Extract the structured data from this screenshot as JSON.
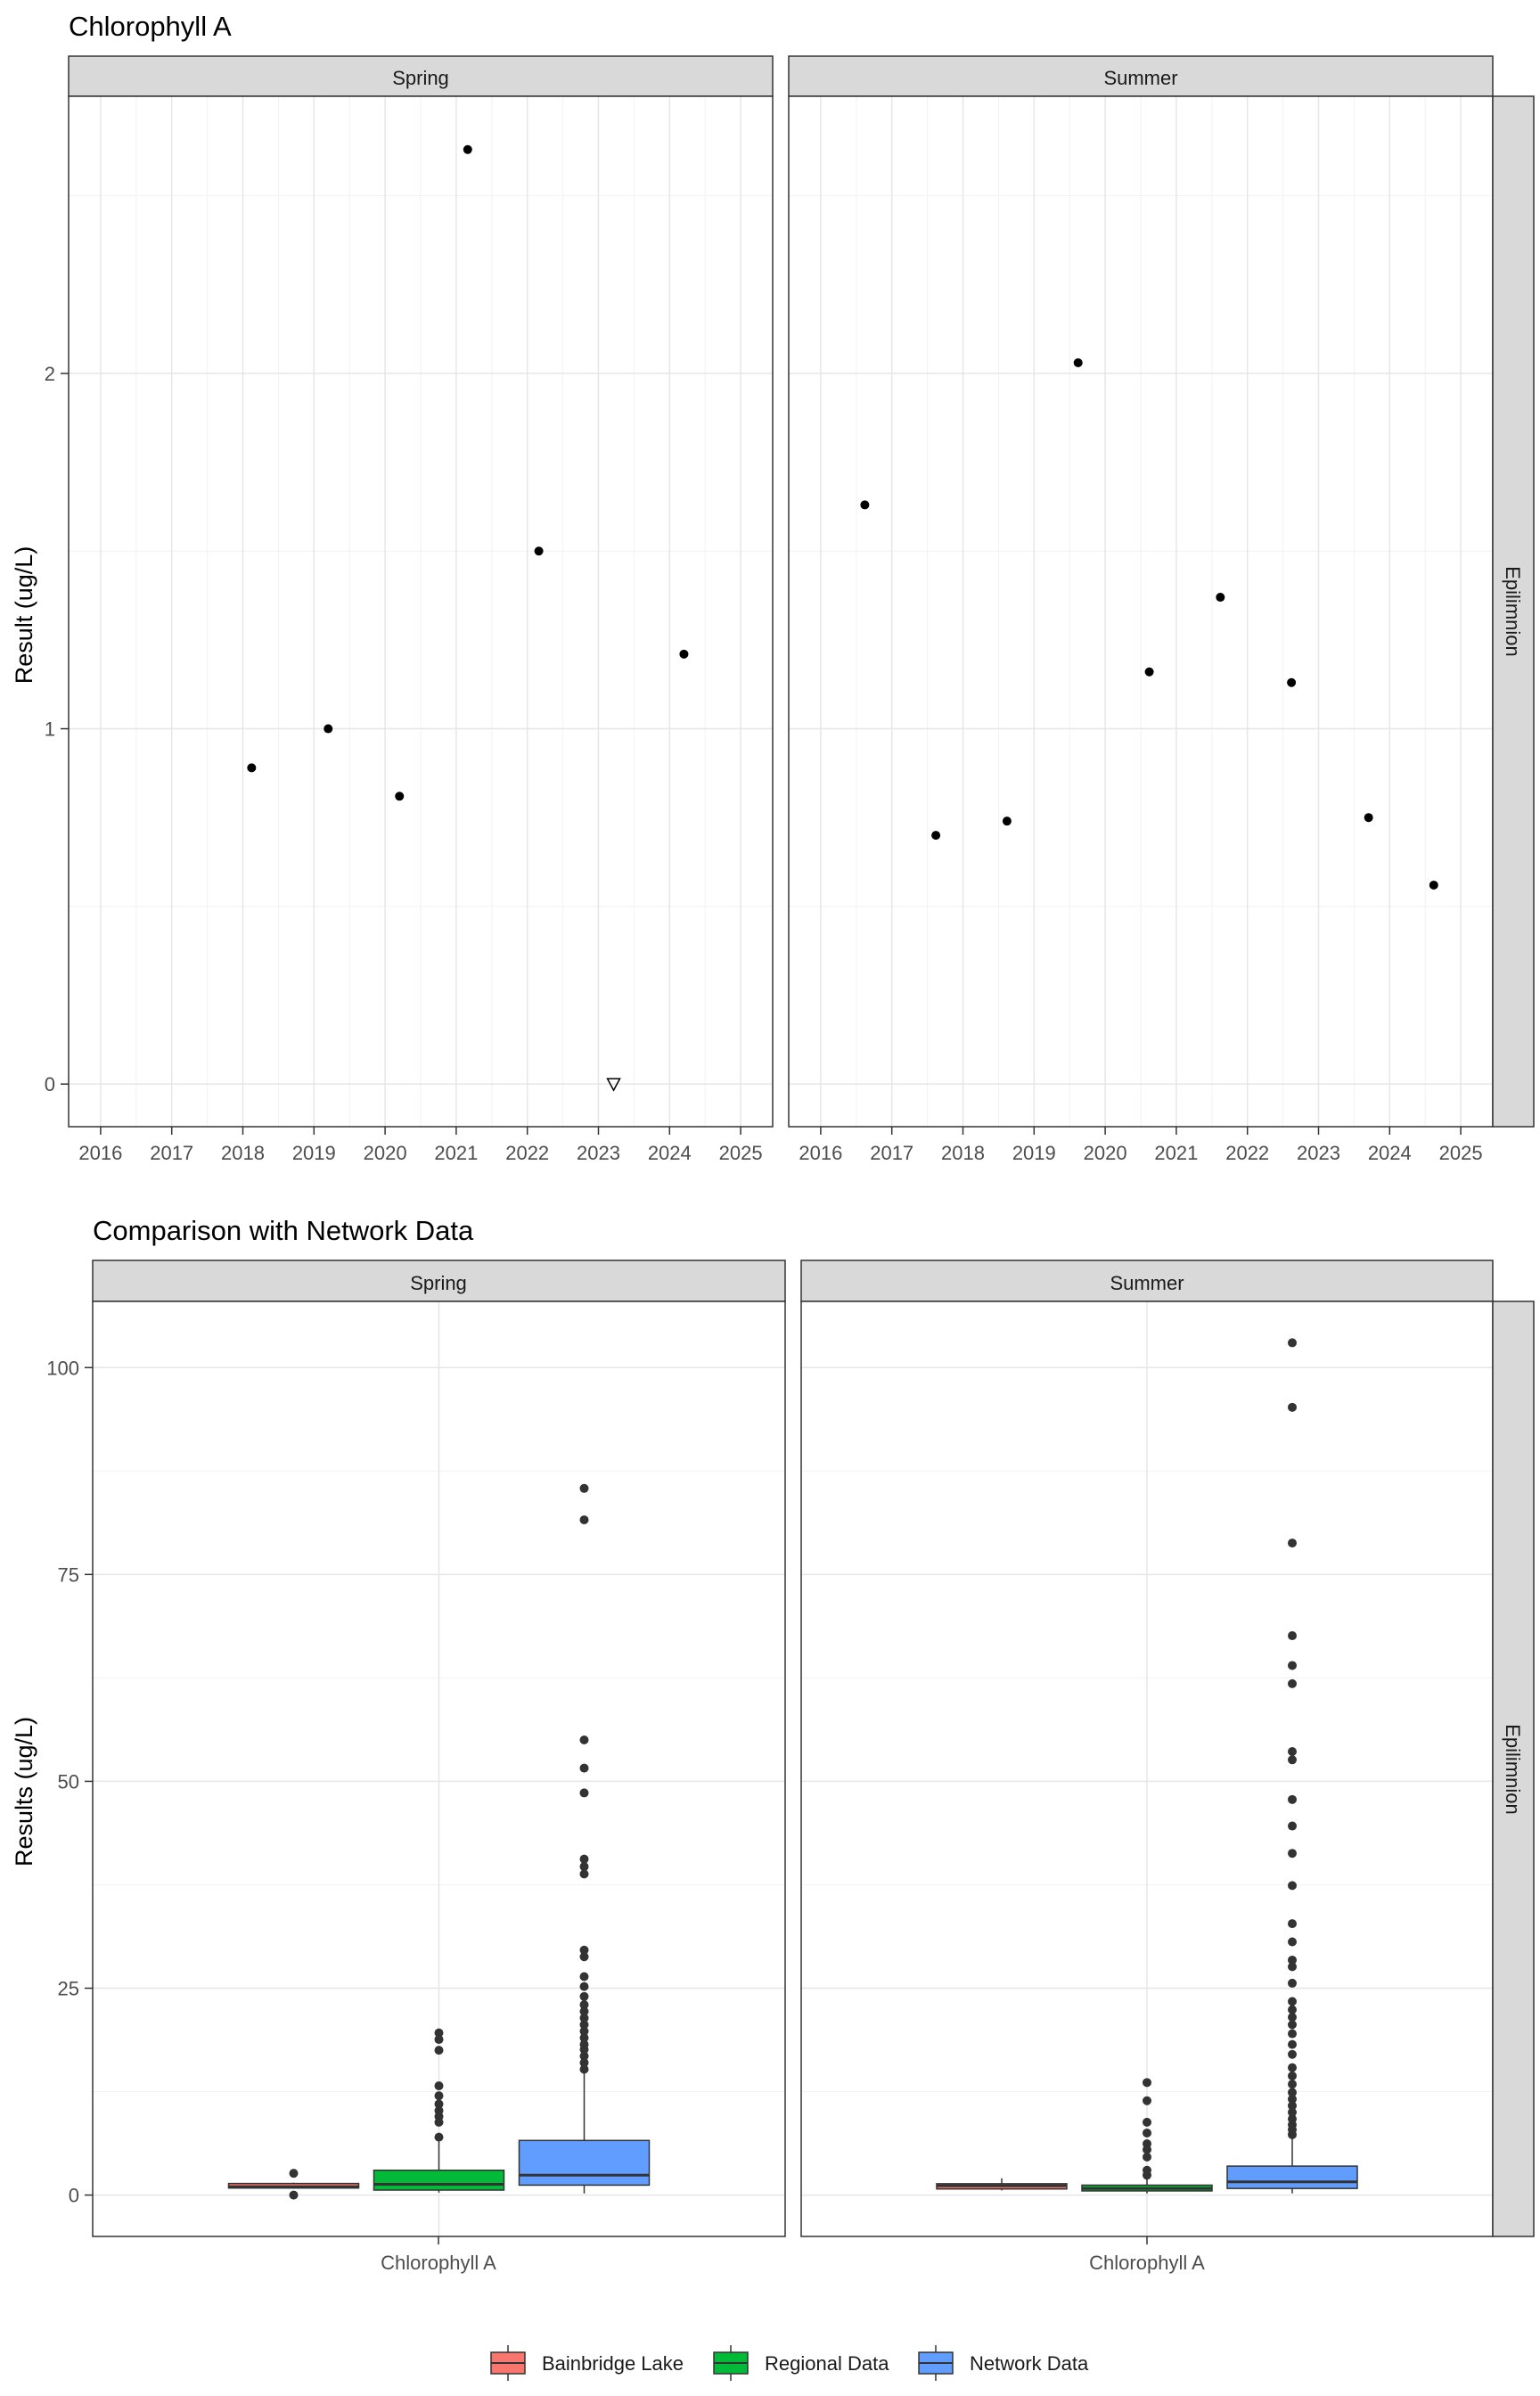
{
  "chart_data": [
    {
      "type": "scatter",
      "title": "Chlorophyll A",
      "ylabel": "Result (ug/L)",
      "xlabel": "",
      "ylim": [
        -0.12,
        2.78
      ],
      "xlim": [
        2015.55,
        2025.45
      ],
      "x_ticks": [
        "2016",
        "2017",
        "2018",
        "2019",
        "2020",
        "2021",
        "2022",
        "2023",
        "2024",
        "2025"
      ],
      "y_ticks": [
        "0",
        "1",
        "2"
      ],
      "grid": true,
      "row_strip": "Epilimnion",
      "panels": [
        {
          "name": "Spring",
          "points": [
            {
              "x": "2018-02-15",
              "y": 0.89
            },
            {
              "x": "2019-03-15",
              "y": 1.0
            },
            {
              "x": "2020-03-15",
              "y": 0.81
            },
            {
              "x": "2021-03-01",
              "y": 2.63
            },
            {
              "x": "2022-03-01",
              "y": 1.5
            },
            {
              "x": "2024-03-15",
              "y": 1.21
            }
          ],
          "censored_points": [
            {
              "x": "2023-03-20",
              "y": 0.0,
              "marker": "down-triangle"
            }
          ]
        },
        {
          "name": "Summer",
          "points": [
            {
              "x": "2016-08-15",
              "y": 1.63
            },
            {
              "x": "2017-08-15",
              "y": 0.7
            },
            {
              "x": "2018-08-15",
              "y": 0.74
            },
            {
              "x": "2019-08-15",
              "y": 2.03
            },
            {
              "x": "2020-08-15",
              "y": 1.16
            },
            {
              "x": "2021-08-15",
              "y": 1.37
            },
            {
              "x": "2022-08-15",
              "y": 1.13
            },
            {
              "x": "2023-09-15",
              "y": 0.75
            },
            {
              "x": "2024-08-15",
              "y": 0.56
            }
          ]
        }
      ]
    },
    {
      "type": "box",
      "title": "Comparison with Network Data",
      "ylabel": "Results (ug/L)",
      "xlabel": "",
      "ylim": [
        -5,
        108
      ],
      "y_ticks": [
        "0",
        "25",
        "50",
        "75",
        "100"
      ],
      "category": "Chlorophyll A",
      "grid": true,
      "row_strip": "Epilimnion",
      "legend": {
        "position": "bottom",
        "entries": [
          {
            "name": "Bainbridge Lake",
            "color": "#F8766D"
          },
          {
            "name": "Regional Data",
            "color": "#00BA38"
          },
          {
            "name": "Network Data",
            "color": "#619CFF"
          }
        ]
      },
      "panels": [
        {
          "name": "Spring",
          "boxes": [
            {
              "series": "Bainbridge Lake",
              "min": 0.8,
              "q1": 0.85,
              "median": 1.0,
              "q3": 1.4,
              "max": 1.5,
              "outliers": [
                2.63,
                0.0
              ]
            },
            {
              "series": "Regional Data",
              "min": 0.3,
              "q1": 0.6,
              "median": 1.3,
              "q3": 3.0,
              "max": 6.5,
              "outliers": [
                7,
                8.8,
                9.5,
                10.2,
                11,
                12,
                13.2,
                17.5,
                18.8,
                19.6
              ]
            },
            {
              "series": "Network Data",
              "min": 0.2,
              "q1": 1.2,
              "median": 2.4,
              "q3": 6.6,
              "max": 14.8,
              "outliers": [
                15.2,
                16,
                16.8,
                17.6,
                18.2,
                19,
                19.8,
                20.6,
                21.4,
                22.2,
                23,
                24,
                25.2,
                26.4,
                28.8,
                29.6,
                38.8,
                39.7,
                40.6,
                48.6,
                51.6,
                55,
                81.6,
                85.4
              ]
            }
          ]
        },
        {
          "name": "Summer",
          "boxes": [
            {
              "series": "Bainbridge Lake",
              "min": 0.56,
              "q1": 0.74,
              "median": 1.13,
              "q3": 1.37,
              "max": 2.03,
              "outliers": []
            },
            {
              "series": "Regional Data",
              "min": 0.2,
              "q1": 0.5,
              "median": 0.8,
              "q3": 1.2,
              "max": 2.0,
              "outliers": [
                2.4,
                3,
                4.6,
                5.5,
                6.2,
                7.5,
                8.8,
                11.4,
                13.6
              ]
            },
            {
              "series": "Network Data",
              "min": 0.2,
              "q1": 0.8,
              "median": 1.6,
              "q3": 3.5,
              "max": 7.0,
              "outliers": [
                7.3,
                7.9,
                8.5,
                9.2,
                10,
                10.8,
                11.6,
                12.4,
                13.4,
                14.4,
                15.4,
                17,
                18.2,
                19.5,
                20.6,
                21.5,
                22.4,
                23.4,
                25.6,
                27.6,
                28.4,
                30.6,
                32.8,
                37.4,
                41.3,
                44.6,
                47.8,
                52.6,
                53.6,
                61.8,
                64,
                67.6,
                78.8,
                95.2,
                103
              ]
            }
          ]
        }
      ]
    }
  ]
}
